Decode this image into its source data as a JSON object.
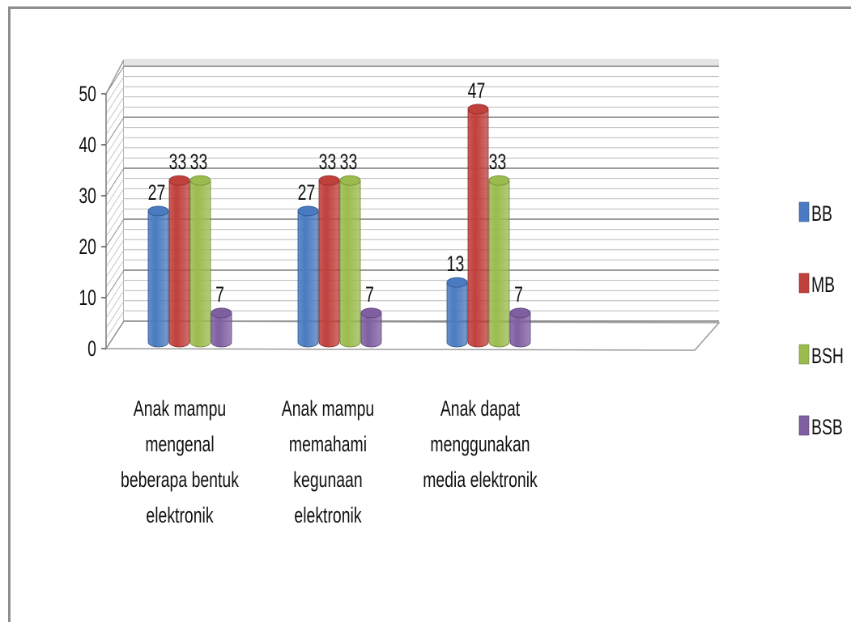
{
  "chart_data": {
    "type": "bar",
    "title": "",
    "xlabel": "",
    "ylabel": "",
    "ylim": [
      0,
      50
    ],
    "yticks": [
      "0",
      "10",
      "20",
      "30",
      "40",
      "50"
    ],
    "grid": true,
    "legend_position": "right",
    "categories": [
      [
        "Anak mampu",
        "mengenal",
        "beberapa bentuk",
        "elektronik"
      ],
      [
        "Anak mampu",
        "memahami",
        "kegunaan",
        "elektronik"
      ],
      [
        "Anak dapat",
        "menggunakan",
        "media elektronik"
      ]
    ],
    "series": [
      {
        "name": "BB",
        "values": [
          27,
          27,
          13
        ],
        "color": "#4a7bc0"
      },
      {
        "name": "MB",
        "values": [
          33,
          33,
          47
        ],
        "color": "#c0403c"
      },
      {
        "name": "BSH",
        "values": [
          33,
          33,
          33
        ],
        "color": "#9bbb4e"
      },
      {
        "name": "BSB",
        "values": [
          7,
          7,
          7
        ],
        "color": "#7f5fa0"
      }
    ]
  }
}
